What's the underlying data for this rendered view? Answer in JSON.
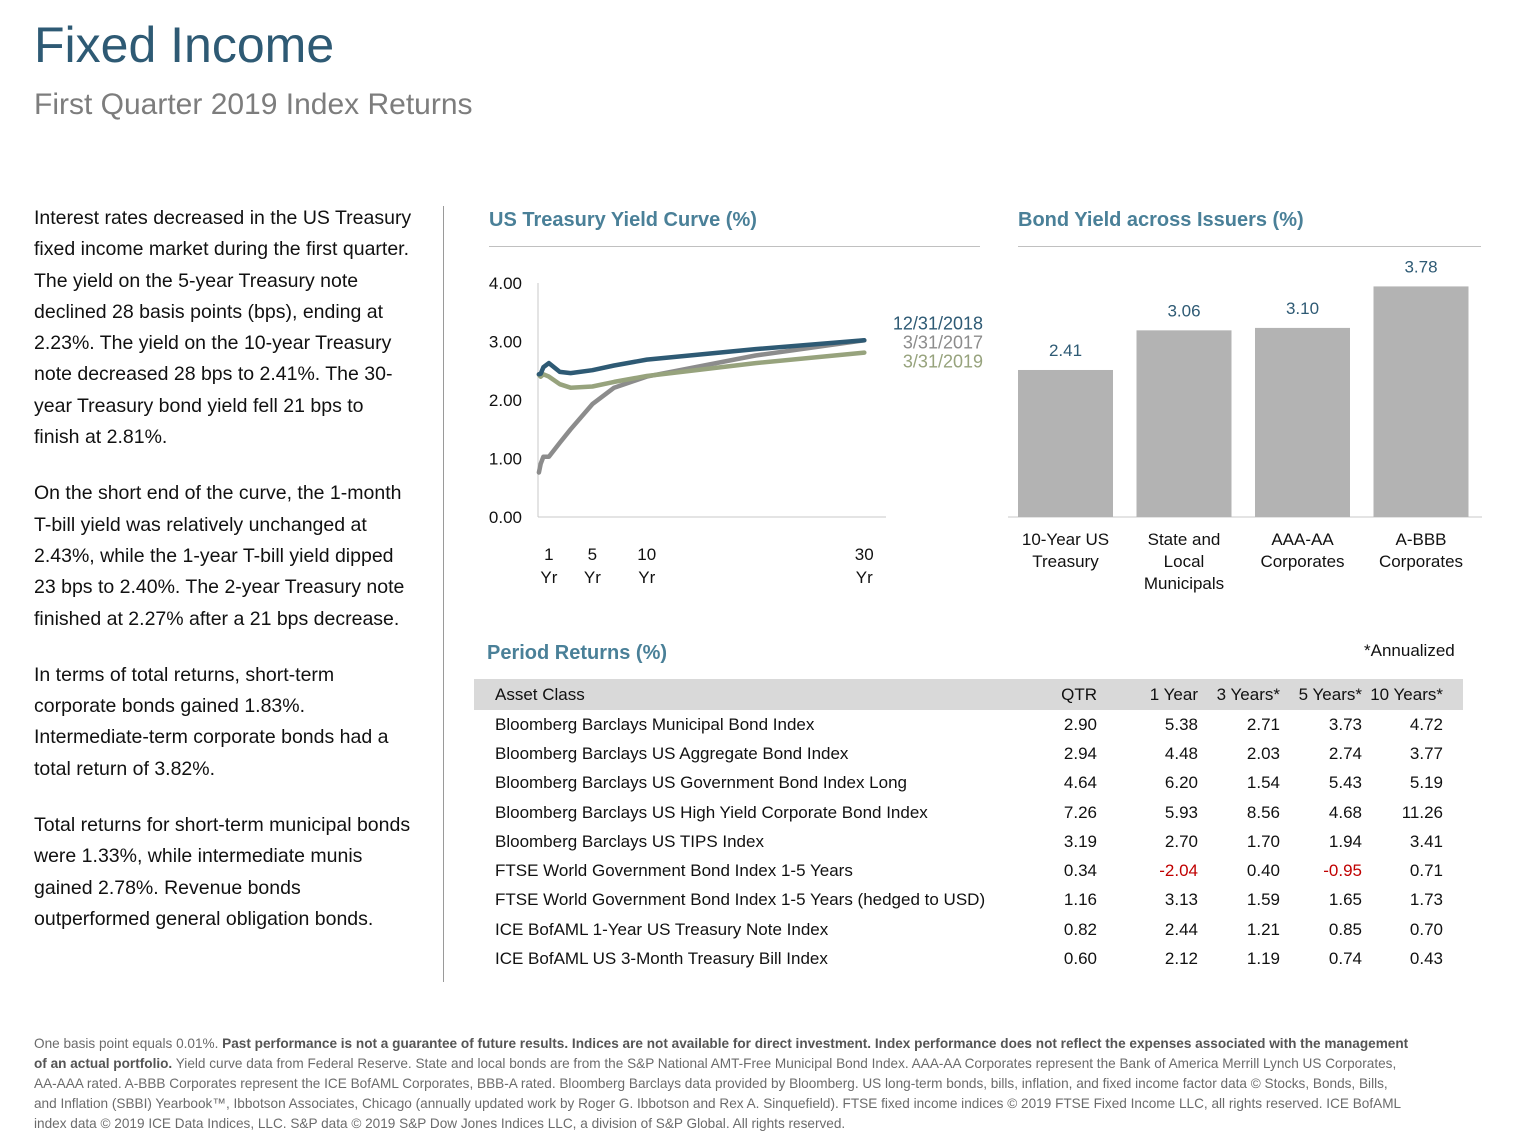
{
  "header": {
    "title": "Fixed Income",
    "subtitle": "First Quarter 2019 Index Returns"
  },
  "commentary": [
    "Interest rates decreased in the US Treasury fixed income market during the first quarter. The yield on the 5-year Treasury note declined 28 basis points (bps), ending at 2.23%. The yield on the 10-year Treasury note decreased 28 bps to 2.41%. The 30-year Treasury bond yield fell 21 bps to finish at 2.81%.",
    "On the short end of the curve, the 1-month T-bill yield was relatively unchanged at 2.43%, while the 1-year T-bill yield dipped 23 bps to 2.40%. The 2-year Treasury note finished at 2.27% after a 21 bps decrease.",
    "In terms of total returns, short-term corporate bonds gained 1.83%. Intermediate-term corporate bonds had a total return of 3.82%.",
    "Total returns for short-term municipal bonds were 1.33%, while intermediate munis gained 2.78%. Revenue bonds outperformed general obligation bonds."
  ],
  "chart_data": [
    {
      "type": "line",
      "title": "US Treasury Yield Curve (%)",
      "xlabel": "",
      "ylabel": "",
      "ylim": [
        0,
        4
      ],
      "yticks": [
        "4.00",
        "3.00",
        "2.00",
        "1.00",
        "0.00"
      ],
      "xticks": [
        {
          "x": 1,
          "label": [
            "1",
            "Yr"
          ]
        },
        {
          "x": 5,
          "label": [
            "5",
            "Yr"
          ]
        },
        {
          "x": 10,
          "label": [
            "10",
            "Yr"
          ]
        },
        {
          "x": 30,
          "label": [
            "30",
            "Yr"
          ]
        }
      ],
      "xlim": [
        0,
        32
      ],
      "grid": false,
      "legend": "inline-right",
      "series": [
        {
          "name": "3/31/2017",
          "color": "#8c8c8c",
          "x": [
            0.08,
            0.25,
            0.5,
            1,
            2,
            3,
            5,
            7,
            10,
            20,
            30
          ],
          "y": [
            0.76,
            0.91,
            1.03,
            1.03,
            1.27,
            1.5,
            1.93,
            2.21,
            2.4,
            2.76,
            3.02
          ]
        },
        {
          "name": "12/31/2018",
          "color": "#2e5a74",
          "x": [
            0.08,
            0.25,
            0.5,
            1,
            2,
            3,
            5,
            7,
            10,
            20,
            30
          ],
          "y": [
            2.44,
            2.45,
            2.56,
            2.63,
            2.48,
            2.46,
            2.51,
            2.59,
            2.69,
            2.87,
            3.02
          ]
        },
        {
          "name": "3/31/2019",
          "color": "#97a37d",
          "x": [
            0.08,
            0.25,
            0.5,
            1,
            2,
            3,
            5,
            7,
            10,
            20,
            30
          ],
          "y": [
            2.43,
            2.4,
            2.44,
            2.4,
            2.27,
            2.21,
            2.23,
            2.31,
            2.41,
            2.63,
            2.81
          ]
        }
      ]
    },
    {
      "type": "bar",
      "title": "Bond Yield across Issuers (%)",
      "xlabel": "",
      "ylabel": "",
      "ylim": [
        0,
        4
      ],
      "grid": false,
      "color": "#b3b3b3",
      "categories": [
        [
          "10-Year US",
          "Treasury"
        ],
        [
          "State and",
          "Local",
          "Municipals"
        ],
        [
          "AAA-AA",
          "Corporates"
        ],
        [
          "A-BBB",
          "Corporates"
        ]
      ],
      "values": [
        2.41,
        3.06,
        3.1,
        3.78
      ],
      "value_labels": [
        "2.41",
        "3.06",
        "3.10",
        "3.78"
      ]
    }
  ],
  "returns": {
    "title": "Period Returns (%)",
    "note": "*Annualized",
    "columns": [
      "Asset Class",
      "QTR",
      "1 Year",
      "3 Years*",
      "5 Years*",
      "10 Years*"
    ],
    "negative_color": "#c00000",
    "rows": [
      [
        "Bloomberg Barclays Municipal Bond Index",
        "2.90",
        "5.38",
        "2.71",
        "3.73",
        "4.72"
      ],
      [
        "Bloomberg Barclays US Aggregate Bond Index",
        "2.94",
        "4.48",
        "2.03",
        "2.74",
        "3.77"
      ],
      [
        "Bloomberg Barclays US Government Bond Index Long",
        "4.64",
        "6.20",
        "1.54",
        "5.43",
        "5.19"
      ],
      [
        "Bloomberg Barclays US High Yield Corporate Bond Index",
        "7.26",
        "5.93",
        "8.56",
        "4.68",
        "11.26"
      ],
      [
        "Bloomberg Barclays US TIPS Index",
        "3.19",
        "2.70",
        "1.70",
        "1.94",
        "3.41"
      ],
      [
        "FTSE World Government Bond Index 1-5 Years",
        "0.34",
        "-2.04",
        "0.40",
        "-0.95",
        "0.71"
      ],
      [
        "FTSE World Government Bond Index 1-5 Years (hedged to USD)",
        "1.16",
        "3.13",
        "1.59",
        "1.65",
        "1.73"
      ],
      [
        "ICE BofAML 1-Year US Treasury Note Index",
        "0.82",
        "2.44",
        "1.21",
        "0.85",
        "0.70"
      ],
      [
        "ICE BofAML US 3-Month Treasury Bill Index",
        "0.60",
        "2.12",
        "1.19",
        "0.74",
        "0.43"
      ]
    ]
  },
  "footer": {
    "lead": "One basis point equals 0.01%. ",
    "bold": "Past performance is not a guarantee of future results. Indices are not available for direct investment. Index performance does not reflect the expenses associated with the management of an actual portfolio.",
    "rest": " Yield curve data from Federal Reserve. State and local bonds are from the S&P National AMT-Free Municipal Bond Index. AAA-AA Corporates represent the Bank of America Merrill Lynch US Corporates, AA-AAA rated. A-BBB Corporates represent the ICE BofAML Corporates, BBB-A rated. Bloomberg Barclays data provided by Bloomberg.  US long-term bonds, bills, inflation, and fixed income factor data © Stocks, Bonds, Bills, and Inflation (SBBI) Yearbook™, Ibbotson Associates, Chicago (annually updated work by Roger G. Ibbotson and Rex A. Sinquefield). FTSE fixed income indices © 2019 FTSE Fixed Income LLC, all rights reserved. ICE BofAML index data © 2019 ICE Data Indices, LLC. S&P data © 2019 S&P Dow Jones Indices LLC, a division of S&P Global. All rights reserved."
  }
}
